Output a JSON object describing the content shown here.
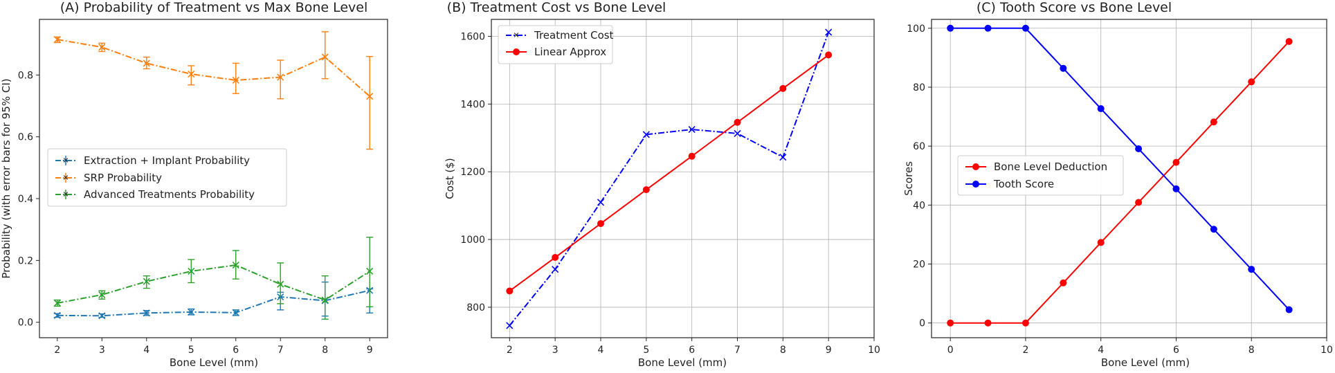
{
  "colors": {
    "blue_tab": "#1f77b4",
    "orange_tab": "#ff7f0e",
    "green_tab": "#2ca02c",
    "blue": "#0000ff",
    "red": "#ff0000",
    "grid": "#b0b0b0"
  },
  "chart_data": [
    {
      "type": "line",
      "title": "(A) Probability of Treatment vs Max Bone Level",
      "xlabel": "Bone Level (mm)",
      "ylabel": "Probability (with error bars for 95% CI)",
      "xlim": [
        1.6,
        9.4
      ],
      "ylim": [
        -0.05,
        0.98
      ],
      "xticks": [
        2,
        3,
        4,
        5,
        6,
        7,
        8,
        9
      ],
      "yticks": [
        0.0,
        0.2,
        0.4,
        0.6,
        0.8
      ],
      "ytick_labels": [
        "0.0",
        "0.2",
        "0.4",
        "0.6",
        "0.8"
      ],
      "grid": false,
      "legend_position": "center-left",
      "x": [
        2,
        3,
        4,
        5,
        6,
        7,
        8,
        9
      ],
      "series": [
        {
          "name": "Extraction + Implant Probability",
          "color": "#1f77b4",
          "values": [
            0.022,
            0.021,
            0.03,
            0.033,
            0.031,
            0.082,
            0.07,
            0.103
          ],
          "err_low": [
            0.016,
            0.016,
            0.022,
            0.024,
            0.022,
            0.04,
            0.02,
            0.03
          ],
          "err_high": [
            0.028,
            0.027,
            0.038,
            0.043,
            0.04,
            0.097,
            0.13,
            0.108
          ]
        },
        {
          "name": "SRP Probability",
          "color": "#ff7f0e",
          "values": [
            0.915,
            0.89,
            0.838,
            0.803,
            0.783,
            0.793,
            0.858,
            0.731
          ],
          "err_low": [
            0.905,
            0.876,
            0.82,
            0.768,
            0.74,
            0.723,
            0.788,
            0.56
          ],
          "err_high": [
            0.923,
            0.903,
            0.858,
            0.83,
            0.838,
            0.848,
            0.94,
            0.86
          ]
        },
        {
          "name": "Advanced Treatments Probability",
          "color": "#2ca02c",
          "values": [
            0.062,
            0.089,
            0.132,
            0.165,
            0.185,
            0.123,
            0.072,
            0.165
          ],
          "err_low": [
            0.052,
            0.075,
            0.11,
            0.128,
            0.14,
            0.06,
            0.01,
            0.05
          ],
          "err_high": [
            0.072,
            0.102,
            0.15,
            0.203,
            0.232,
            0.192,
            0.15,
            0.275
          ]
        }
      ]
    },
    {
      "type": "line",
      "title": "(B) Treatment Cost vs Bone Level",
      "xlabel": "Bone Level (mm)",
      "ylabel": "Cost ($)",
      "xlim": [
        1.6,
        10
      ],
      "ylim": [
        710,
        1650
      ],
      "xticks": [
        2,
        3,
        4,
        5,
        6,
        7,
        8,
        9,
        10
      ],
      "yticks": [
        800,
        1000,
        1200,
        1400,
        1600
      ],
      "grid": true,
      "legend_position": "top-left",
      "x": [
        2,
        3,
        4,
        5,
        6,
        7,
        8,
        9
      ],
      "series": [
        {
          "name": "Treatment Cost",
          "color": "#0000ff",
          "values": [
            746,
            912,
            1110,
            1310,
            1325,
            1313,
            1243,
            1612
          ]
        },
        {
          "name": "Linear Approx",
          "color": "#ff0000",
          "values": [
            848,
            947,
            1047,
            1147,
            1246,
            1346,
            1446,
            1545
          ]
        }
      ]
    },
    {
      "type": "line",
      "title": "(C) Tooth Score vs Bone Level",
      "xlabel": "Bone Level (mm)",
      "ylabel": "Scores",
      "xlim": [
        -0.5,
        10
      ],
      "ylim": [
        -5,
        103
      ],
      "xticks": [
        0,
        2,
        4,
        6,
        8,
        10
      ],
      "yticks": [
        0,
        20,
        40,
        60,
        80,
        100
      ],
      "grid": true,
      "legend_position": "center-left",
      "x": [
        0,
        1,
        2,
        3,
        4,
        5,
        6,
        7,
        8,
        9
      ],
      "series": [
        {
          "name": "Bone Level Deduction",
          "color": "#ff0000",
          "values": [
            0,
            0,
            0,
            13.6,
            27.3,
            40.9,
            54.5,
            68.2,
            81.8,
            95.5
          ]
        },
        {
          "name": "Tooth Score",
          "color": "#0000ff",
          "values": [
            100,
            100,
            100,
            86.4,
            72.7,
            59.1,
            45.5,
            31.8,
            18.2,
            4.5
          ]
        }
      ]
    }
  ]
}
